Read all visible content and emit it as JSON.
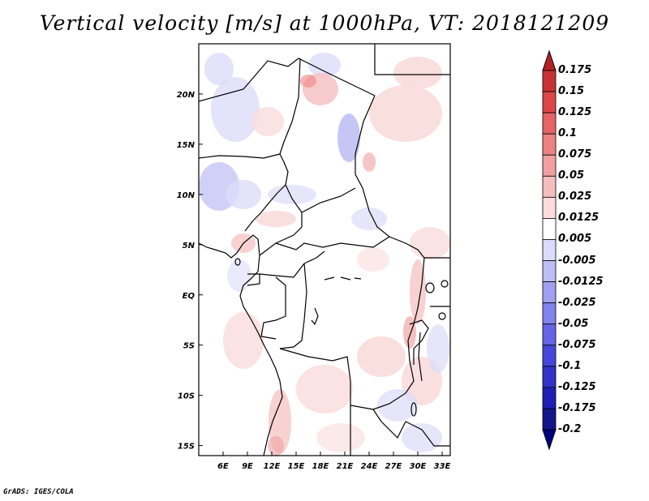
{
  "title": "Vertical velocity [m/s] at 1000hPa, VT: 2018121209",
  "credit": "GrADS: IGES/COLA",
  "map": {
    "lon_range": [
      3,
      34
    ],
    "lat_range": [
      -16,
      25
    ],
    "lon_ticks": [
      "6E",
      "9E",
      "12E",
      "15E",
      "18E",
      "21E",
      "24E",
      "27E",
      "30E",
      "33E"
    ],
    "lat_ticks": [
      "20N",
      "15N",
      "10N",
      "5N",
      "EQ",
      "5S",
      "10S",
      "15S"
    ]
  },
  "colorbar": {
    "labels": [
      "0.175",
      "0.15",
      "0.125",
      "0.1",
      "0.075",
      "0.05",
      "0.025",
      "0.0125",
      "0.005",
      "-0.005",
      "-0.0125",
      "-0.025",
      "-0.05",
      "-0.075",
      "-0.1",
      "-0.125",
      "-0.175",
      "-0.2"
    ],
    "colors": [
      "#b22222",
      "#c83232",
      "#dc4646",
      "#e66464",
      "#ec8282",
      "#f0a0a0",
      "#f5bebe",
      "#fadcdc",
      "#ffffff",
      "#dcdcfa",
      "#bebef5",
      "#a0a0f0",
      "#8282ec",
      "#6464e6",
      "#4646dc",
      "#3232c8",
      "#1e1eb4",
      "#14148c",
      "#000080"
    ]
  }
}
